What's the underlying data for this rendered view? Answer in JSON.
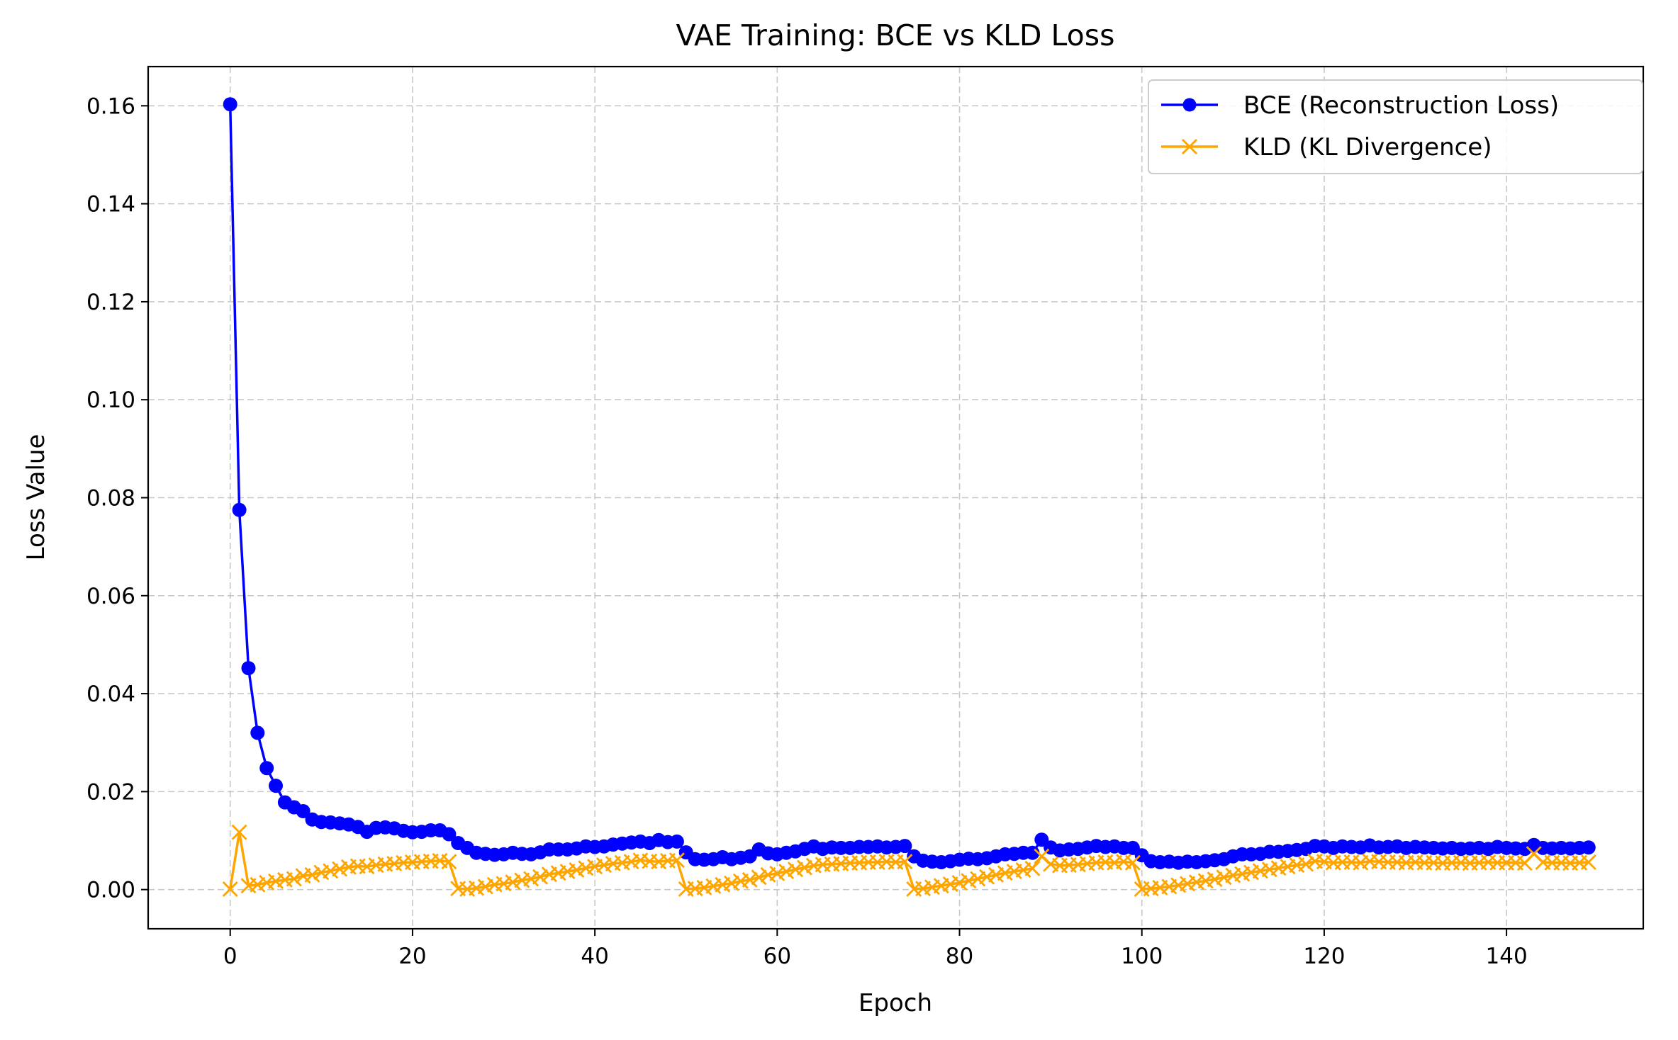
{
  "chart_data": {
    "type": "line",
    "title": "VAE Training: BCE vs KLD Loss",
    "xlabel": "Epoch",
    "ylabel": "Loss Value",
    "xlim": [
      -9,
      155
    ],
    "ylim": [
      -0.008,
      0.168
    ],
    "xticks": [
      0,
      20,
      40,
      60,
      80,
      100,
      120,
      140
    ],
    "xtick_labels": [
      "0",
      "20",
      "40",
      "60",
      "80",
      "100",
      "120",
      "140"
    ],
    "yticks": [
      0.0,
      0.02,
      0.04,
      0.06,
      0.08,
      0.1,
      0.12,
      0.14,
      0.16
    ],
    "ytick_labels": [
      "0.00",
      "0.02",
      "0.04",
      "0.06",
      "0.08",
      "0.10",
      "0.12",
      "0.14",
      "0.16"
    ],
    "grid": true,
    "legend_position": "top-right",
    "series": [
      {
        "name": "BCE (Reconstruction Loss)",
        "color": "#0000ff",
        "marker": "circle",
        "x": [
          0,
          1,
          2,
          3,
          4,
          5,
          6,
          7,
          8,
          9,
          10,
          11,
          12,
          13,
          14,
          15,
          16,
          17,
          18,
          19,
          20,
          21,
          22,
          23,
          24,
          25,
          26,
          27,
          28,
          29,
          30,
          31,
          32,
          33,
          34,
          35,
          36,
          37,
          38,
          39,
          40,
          41,
          42,
          43,
          44,
          45,
          46,
          47,
          48,
          49,
          50,
          51,
          52,
          53,
          54,
          55,
          56,
          57,
          58,
          59,
          60,
          61,
          62,
          63,
          64,
          65,
          66,
          67,
          68,
          69,
          70,
          71,
          72,
          73,
          74,
          75,
          76,
          77,
          78,
          79,
          80,
          81,
          82,
          83,
          84,
          85,
          86,
          87,
          88,
          89,
          90,
          91,
          92,
          93,
          94,
          95,
          96,
          97,
          98,
          99,
          100,
          101,
          102,
          103,
          104,
          105,
          106,
          107,
          108,
          109,
          110,
          111,
          112,
          113,
          114,
          115,
          116,
          117,
          118,
          119,
          120,
          121,
          122,
          123,
          124,
          125,
          126,
          127,
          128,
          129,
          130,
          131,
          132,
          133,
          134,
          135,
          136,
          137,
          138,
          139,
          140,
          141,
          142,
          143,
          144,
          145,
          146,
          147,
          148,
          149
        ],
        "values": [
          0.1603,
          0.0775,
          0.0452,
          0.032,
          0.0248,
          0.0212,
          0.0178,
          0.0168,
          0.016,
          0.0143,
          0.0138,
          0.0137,
          0.0135,
          0.0133,
          0.0128,
          0.0118,
          0.0126,
          0.0127,
          0.0125,
          0.012,
          0.0117,
          0.0118,
          0.0121,
          0.0121,
          0.0113,
          0.0095,
          0.0085,
          0.0075,
          0.0073,
          0.0071,
          0.0072,
          0.0075,
          0.0073,
          0.0072,
          0.0076,
          0.0082,
          0.0082,
          0.0082,
          0.0084,
          0.0088,
          0.0087,
          0.0088,
          0.0092,
          0.0094,
          0.0096,
          0.0098,
          0.0095,
          0.0101,
          0.0097,
          0.0098,
          0.0076,
          0.0062,
          0.0061,
          0.0062,
          0.0066,
          0.0062,
          0.0065,
          0.0068,
          0.0082,
          0.0074,
          0.0072,
          0.0075,
          0.0078,
          0.0083,
          0.0088,
          0.0083,
          0.0086,
          0.0085,
          0.0085,
          0.0087,
          0.0087,
          0.0088,
          0.0086,
          0.0087,
          0.0089,
          0.0068,
          0.0059,
          0.0057,
          0.0056,
          0.0058,
          0.0061,
          0.0063,
          0.0062,
          0.0064,
          0.0068,
          0.0072,
          0.0073,
          0.0075,
          0.0075,
          0.0102,
          0.0086,
          0.008,
          0.0082,
          0.0083,
          0.0086,
          0.0089,
          0.0087,
          0.0088,
          0.0085,
          0.0085,
          0.007,
          0.0058,
          0.0056,
          0.0057,
          0.0055,
          0.0057,
          0.0056,
          0.0058,
          0.006,
          0.0062,
          0.0068,
          0.0072,
          0.0072,
          0.0073,
          0.0077,
          0.0077,
          0.0079,
          0.0081,
          0.0083,
          0.0089,
          0.0088,
          0.0085,
          0.0088,
          0.0087,
          0.0086,
          0.009,
          0.0086,
          0.0087,
          0.0088,
          0.0085,
          0.0087,
          0.0086,
          0.0085,
          0.0084,
          0.0085,
          0.0083,
          0.0084,
          0.0085,
          0.0083,
          0.0087,
          0.0085,
          0.0084,
          0.0083,
          0.0091,
          0.0085,
          0.0084,
          0.0085,
          0.0084,
          0.0085,
          0.0086
        ]
      },
      {
        "name": "KLD (KL Divergence)",
        "color": "#ffa500",
        "marker": "x",
        "x": [
          0,
          1,
          2,
          3,
          4,
          5,
          6,
          7,
          8,
          9,
          10,
          11,
          12,
          13,
          14,
          15,
          16,
          17,
          18,
          19,
          20,
          21,
          22,
          23,
          24,
          25,
          26,
          27,
          28,
          29,
          30,
          31,
          32,
          33,
          34,
          35,
          36,
          37,
          38,
          39,
          40,
          41,
          42,
          43,
          44,
          45,
          46,
          47,
          48,
          49,
          50,
          51,
          52,
          53,
          54,
          55,
          56,
          57,
          58,
          59,
          60,
          61,
          62,
          63,
          64,
          65,
          66,
          67,
          68,
          69,
          70,
          71,
          72,
          73,
          74,
          75,
          76,
          77,
          78,
          79,
          80,
          81,
          82,
          83,
          84,
          85,
          86,
          87,
          88,
          89,
          90,
          91,
          92,
          93,
          94,
          95,
          96,
          97,
          98,
          99,
          100,
          101,
          102,
          103,
          104,
          105,
          106,
          107,
          108,
          109,
          110,
          111,
          112,
          113,
          114,
          115,
          116,
          117,
          118,
          119,
          120,
          121,
          122,
          123,
          124,
          125,
          126,
          127,
          128,
          129,
          130,
          131,
          132,
          133,
          134,
          135,
          136,
          137,
          138,
          139,
          140,
          141,
          142,
          143,
          144,
          145,
          146,
          147,
          148,
          149
        ],
        "values": [
          0.0001,
          0.0117,
          0.0008,
          0.001,
          0.0014,
          0.0017,
          0.002,
          0.0022,
          0.0028,
          0.003,
          0.0035,
          0.0038,
          0.0042,
          0.0046,
          0.0048,
          0.0047,
          0.005,
          0.0052,
          0.0053,
          0.0055,
          0.0056,
          0.0057,
          0.0058,
          0.0059,
          0.0057,
          0.0002,
          0.0001,
          0.0003,
          0.0006,
          0.001,
          0.0012,
          0.0015,
          0.0019,
          0.0022,
          0.0026,
          0.0031,
          0.0034,
          0.0037,
          0.004,
          0.0044,
          0.0047,
          0.005,
          0.0053,
          0.0055,
          0.0057,
          0.006,
          0.0058,
          0.0057,
          0.0059,
          0.006,
          0.0001,
          0.0002,
          0.0004,
          0.0007,
          0.001,
          0.0013,
          0.0017,
          0.002,
          0.0025,
          0.003,
          0.0033,
          0.0037,
          0.0041,
          0.0045,
          0.0049,
          0.0051,
          0.0052,
          0.0053,
          0.0054,
          0.0055,
          0.0056,
          0.0056,
          0.0057,
          0.0056,
          0.0057,
          0.0001,
          0.0002,
          0.0005,
          0.0008,
          0.0011,
          0.0014,
          0.0018,
          0.0022,
          0.0026,
          0.003,
          0.0034,
          0.0037,
          0.004,
          0.0043,
          0.0068,
          0.0052,
          0.0049,
          0.005,
          0.0051,
          0.0053,
          0.0055,
          0.0056,
          0.0055,
          0.0057,
          0.0055,
          0.0001,
          0.0002,
          0.0004,
          0.0006,
          0.0009,
          0.0012,
          0.0015,
          0.0018,
          0.0021,
          0.0025,
          0.0029,
          0.0032,
          0.0035,
          0.0038,
          0.0041,
          0.0044,
          0.0047,
          0.005,
          0.0052,
          0.0058,
          0.0057,
          0.0055,
          0.0056,
          0.0056,
          0.0055,
          0.0058,
          0.0057,
          0.0056,
          0.0056,
          0.0055,
          0.0056,
          0.0055,
          0.0055,
          0.0054,
          0.0055,
          0.0055,
          0.0054,
          0.0055,
          0.0056,
          0.0055,
          0.0055,
          0.0055,
          0.0054,
          0.0073,
          0.0056,
          0.0055,
          0.0055,
          0.0054,
          0.0055,
          0.0056
        ]
      }
    ]
  }
}
